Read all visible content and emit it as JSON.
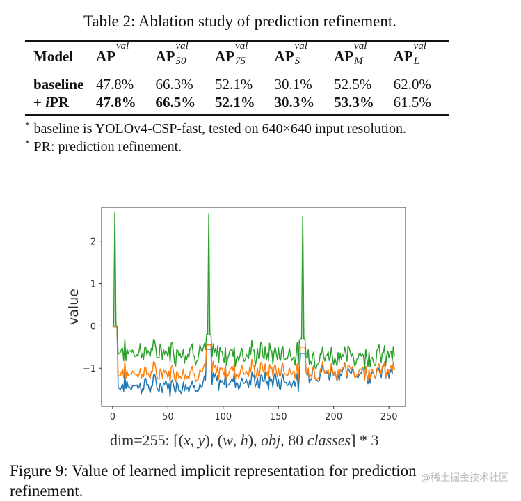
{
  "table": {
    "caption": "Table 2: Ablation study of prediction refinement.",
    "header": {
      "model": "Model",
      "columns": [
        {
          "base": "AP",
          "sup": "val",
          "sub": ""
        },
        {
          "base": "AP",
          "sup": "val",
          "sub": "50"
        },
        {
          "base": "AP",
          "sup": "val",
          "sub": "75"
        },
        {
          "base": "AP",
          "sup": "val",
          "sub": "S"
        },
        {
          "base": "AP",
          "sup": "val",
          "sub": "M"
        },
        {
          "base": "AP",
          "sup": "val",
          "sub": "L"
        }
      ]
    },
    "rows": [
      {
        "model_prefix": "baseline",
        "model_italic": "",
        "model_suffix": "",
        "values": [
          "47.8%",
          "66.3%",
          "52.1%",
          "30.1%",
          "52.5%",
          "62.0%"
        ],
        "bold": [
          false,
          false,
          false,
          false,
          false,
          false
        ]
      },
      {
        "model_prefix": "+ ",
        "model_italic": "i",
        "model_suffix": "PR",
        "values": [
          "47.8%",
          "66.5%",
          "52.1%",
          "30.3%",
          "53.3%",
          "61.5%"
        ],
        "bold": [
          true,
          true,
          true,
          true,
          true,
          false
        ]
      }
    ]
  },
  "notes": [
    {
      "marker": "*",
      "text": "baseline is YOLOv4-CSP-fast, tested on 640×640 input resolution."
    },
    {
      "marker": "*",
      "text": "PR: prediction refinement."
    }
  ],
  "chart_data": {
    "type": "line",
    "ylabel": "value",
    "xlabel": "",
    "xlim": [
      -10,
      265
    ],
    "ylim": [
      -1.9,
      2.8
    ],
    "xticks": [
      0,
      50,
      100,
      150,
      200,
      250
    ],
    "yticks": [
      -1,
      0,
      1,
      2
    ],
    "x_range": [
      0,
      255
    ],
    "series": [
      {
        "name": "blue",
        "color": "#1f77b4",
        "base": -1.35,
        "spikes": [
          {
            "x": 2,
            "value": -0.02
          },
          {
            "x": 87,
            "value": -0.55
          },
          {
            "x": 172,
            "value": -0.65
          }
        ],
        "segments": [
          {
            "from": 0,
            "to": 4,
            "value": -0.02
          },
          {
            "from": 85,
            "to": 89,
            "value": -0.55
          },
          {
            "from": 170,
            "to": 174,
            "value": -0.65
          }
        ],
        "levels": [
          {
            "from": 5,
            "to": 85,
            "value": -1.4
          },
          {
            "from": 89,
            "to": 170,
            "value": -1.3
          },
          {
            "from": 174,
            "to": 255,
            "value": -1.1
          }
        ]
      },
      {
        "name": "orange",
        "color": "#ff7f0e",
        "base": -1.05,
        "spikes": [
          {
            "x": 2,
            "value": -0.02
          },
          {
            "x": 87,
            "value": -0.45
          },
          {
            "x": 172,
            "value": -0.5
          }
        ],
        "segments": [
          {
            "from": 0,
            "to": 4,
            "value": -0.02
          },
          {
            "from": 85,
            "to": 89,
            "value": -0.45
          },
          {
            "from": 170,
            "to": 174,
            "value": -0.5
          }
        ],
        "levels": [
          {
            "from": 5,
            "to": 85,
            "value": -1.1
          },
          {
            "from": 89,
            "to": 170,
            "value": -1.05
          },
          {
            "from": 174,
            "to": 255,
            "value": -1.05
          }
        ]
      },
      {
        "name": "green",
        "color": "#2ca02c",
        "base": -0.65,
        "spikes": [
          {
            "x": 2,
            "value": 2.7
          },
          {
            "x": 87,
            "value": 2.65
          },
          {
            "x": 172,
            "value": 2.6
          }
        ],
        "segments": [
          {
            "from": 0,
            "to": 4,
            "value": 0.0
          },
          {
            "from": 85,
            "to": 89,
            "value": -0.2
          },
          {
            "from": 170,
            "to": 174,
            "value": -0.3
          }
        ],
        "levels": [
          {
            "from": 5,
            "to": 85,
            "value": -0.6
          },
          {
            "from": 89,
            "to": 170,
            "value": -0.65
          },
          {
            "from": 174,
            "to": 255,
            "value": -0.7
          }
        ]
      }
    ]
  },
  "dim_label": {
    "prefix": "dim=255: [(",
    "x": "x",
    "comma1": ", ",
    "y": "y",
    "mid1": "), (",
    "w": "w",
    "comma2": ", ",
    "h": "h",
    "mid2": "), ",
    "obj": "obj",
    "mid3": ", 80 ",
    "classes": "classes",
    "suffix": "] * 3"
  },
  "figure_caption": "Figure 9: Value of learned implicit representation for prediction refinement.",
  "watermark": "@稀土掘金技术社区"
}
